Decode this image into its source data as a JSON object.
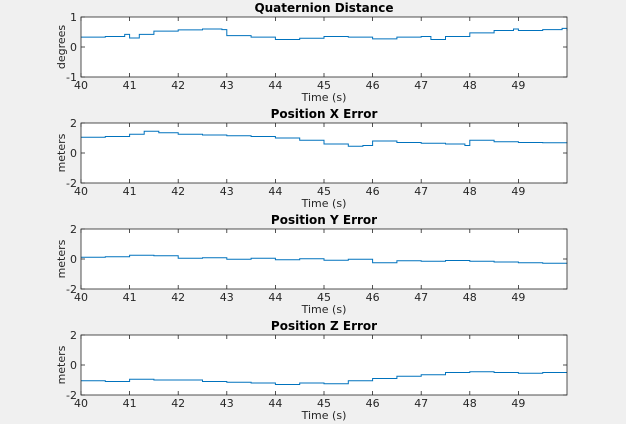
{
  "chart_data": [
    {
      "type": "line",
      "title": "Quaternion Distance",
      "xlabel": "Time (s)",
      "ylabel": "degrees",
      "xlim": [
        40,
        50
      ],
      "ylim": [
        -1,
        1
      ],
      "xticks": [
        "40",
        "41",
        "42",
        "43",
        "44",
        "45",
        "46",
        "47",
        "48",
        "49"
      ],
      "yticks": [
        "-1",
        "0",
        "1"
      ],
      "grid": false,
      "color": "#0072bd",
      "x": [
        40.0,
        40.5,
        40.9,
        41.0,
        41.2,
        41.5,
        42.0,
        42.5,
        42.9,
        43.0,
        43.5,
        44.0,
        44.5,
        45.0,
        45.5,
        46.0,
        46.5,
        47.0,
        47.2,
        47.5,
        48.0,
        48.5,
        48.9,
        49.0,
        49.5,
        49.9,
        50.0
      ],
      "y": [
        0.33,
        0.35,
        0.42,
        0.3,
        0.42,
        0.53,
        0.57,
        0.6,
        0.58,
        0.38,
        0.33,
        0.25,
        0.29,
        0.35,
        0.33,
        0.27,
        0.33,
        0.35,
        0.25,
        0.35,
        0.47,
        0.55,
        0.6,
        0.55,
        0.58,
        0.62,
        0.55
      ]
    },
    {
      "type": "line",
      "title": "Position X Error",
      "xlabel": "Time (s)",
      "ylabel": "meters",
      "xlim": [
        40,
        50
      ],
      "ylim": [
        -2,
        2
      ],
      "xticks": [
        "40",
        "41",
        "42",
        "43",
        "44",
        "45",
        "46",
        "47",
        "48",
        "49"
      ],
      "yticks": [
        "-2",
        "0",
        "2"
      ],
      "grid": false,
      "color": "#0072bd",
      "x": [
        40.0,
        40.5,
        41.0,
        41.3,
        41.6,
        42.0,
        42.5,
        43.0,
        43.5,
        44.0,
        44.5,
        45.0,
        45.5,
        45.8,
        46.0,
        46.5,
        47.0,
        47.5,
        47.9,
        48.0,
        48.5,
        49.0,
        49.5,
        50.0
      ],
      "y": [
        1.05,
        1.1,
        1.25,
        1.45,
        1.35,
        1.25,
        1.2,
        1.15,
        1.1,
        1.0,
        0.85,
        0.6,
        0.45,
        0.5,
        0.8,
        0.7,
        0.65,
        0.6,
        0.5,
        0.85,
        0.75,
        0.7,
        0.68,
        0.65
      ]
    },
    {
      "type": "line",
      "title": "Position Y Error",
      "xlabel": "Time (s)",
      "ylabel": "meters",
      "xlim": [
        40,
        50
      ],
      "ylim": [
        -2,
        2
      ],
      "xticks": [
        "40",
        "41",
        "42",
        "43",
        "44",
        "45",
        "46",
        "47",
        "48",
        "49"
      ],
      "yticks": [
        "-2",
        "0",
        "2"
      ],
      "grid": false,
      "color": "#0072bd",
      "x": [
        40.0,
        40.5,
        41.0,
        41.5,
        42.0,
        42.5,
        43.0,
        43.5,
        44.0,
        44.5,
        45.0,
        45.5,
        46.0,
        46.5,
        47.0,
        47.5,
        48.0,
        48.5,
        49.0,
        49.5,
        50.0
      ],
      "y": [
        0.12,
        0.15,
        0.25,
        0.22,
        0.05,
        0.08,
        -0.02,
        0.05,
        -0.05,
        0.02,
        -0.08,
        -0.02,
        -0.25,
        -0.12,
        -0.15,
        -0.1,
        -0.15,
        -0.2,
        -0.25,
        -0.28,
        -0.3
      ]
    },
    {
      "type": "line",
      "title": "Position Z Error",
      "xlabel": "Time (s)",
      "ylabel": "meters",
      "xlim": [
        40,
        50
      ],
      "ylim": [
        -2,
        2
      ],
      "xticks": [
        "40",
        "41",
        "42",
        "43",
        "44",
        "45",
        "46",
        "47",
        "48",
        "49"
      ],
      "yticks": [
        "-2",
        "0",
        "2"
      ],
      "grid": false,
      "color": "#0072bd",
      "x": [
        40.0,
        40.5,
        41.0,
        41.5,
        42.0,
        42.5,
        43.0,
        43.5,
        44.0,
        44.5,
        45.0,
        45.5,
        46.0,
        46.5,
        47.0,
        47.5,
        48.0,
        48.5,
        49.0,
        49.5,
        50.0
      ],
      "y": [
        -1.05,
        -1.1,
        -0.95,
        -1.0,
        -1.0,
        -1.1,
        -1.15,
        -1.2,
        -1.3,
        -1.2,
        -1.25,
        -1.05,
        -0.9,
        -0.75,
        -0.65,
        -0.5,
        -0.45,
        -0.5,
        -0.55,
        -0.5,
        -0.5
      ]
    }
  ]
}
